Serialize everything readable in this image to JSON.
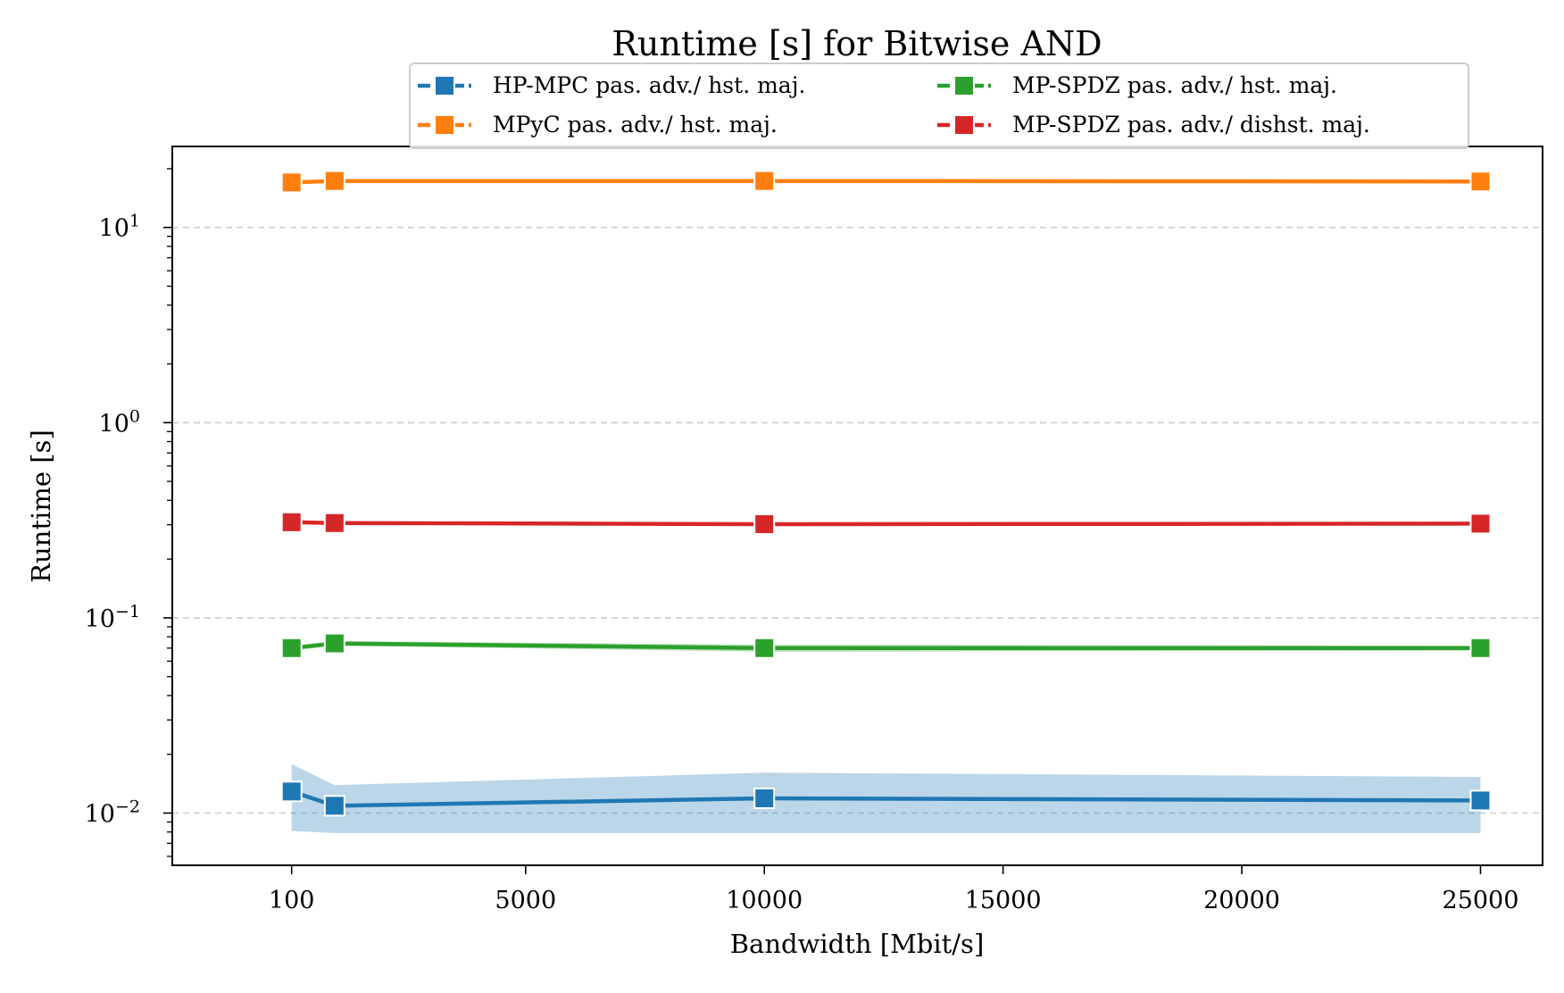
{
  "chart_data": {
    "type": "line",
    "title": "Runtime [s] for Bitwise AND",
    "xlabel": "Bandwidth [Mbit/s]",
    "ylabel": "Runtime [s]",
    "yscale": "log",
    "xlim": [
      -2400,
      26300
    ],
    "ylim": [
      0.0054,
      26
    ],
    "xticks": [
      100,
      5000,
      10000,
      15000,
      20000,
      25000
    ],
    "yticks": [
      {
        "value": 0.01,
        "base": "10",
        "exp": "−2"
      },
      {
        "value": 0.1,
        "base": "10",
        "exp": "−1"
      },
      {
        "value": 1,
        "base": "10",
        "exp": "0"
      },
      {
        "value": 10,
        "base": "10",
        "exp": "1"
      }
    ],
    "grid": "y, dashed",
    "legend_position": "top-center",
    "x": [
      100,
      1000,
      10000,
      25000
    ],
    "series": [
      {
        "name": "HP-MPC pas. adv./ hst. maj.",
        "color": "#1f77b4",
        "values": [
          0.0129,
          0.0109,
          0.0119,
          0.0116
        ],
        "band_low": [
          0.0081,
          0.0079,
          0.0079,
          0.0079
        ],
        "band_high": [
          0.0178,
          0.0139,
          0.0161,
          0.0153
        ]
      },
      {
        "name": "MPyC pas. adv./ hst. maj.",
        "color": "#ff7f0e",
        "values": [
          17.0,
          17.3,
          17.3,
          17.2
        ],
        "band_low": [
          16.8,
          17.1,
          17.1,
          17.0
        ],
        "band_high": [
          17.2,
          17.5,
          17.5,
          17.4
        ]
      },
      {
        "name": "MP-SPDZ pas. adv./ hst. maj.",
        "color": "#2ca02c",
        "values": [
          0.07,
          0.074,
          0.07,
          0.07
        ],
        "band_low": [
          0.068,
          0.072,
          0.067,
          0.068
        ],
        "band_high": [
          0.072,
          0.076,
          0.073,
          0.072
        ]
      },
      {
        "name": "MP-SPDZ pas. adv./ dishst. maj.",
        "color": "#d62728",
        "values": [
          0.309,
          0.306,
          0.302,
          0.304
        ],
        "band_low": [
          0.305,
          0.302,
          0.298,
          0.3
        ],
        "band_high": [
          0.313,
          0.31,
          0.306,
          0.308
        ]
      }
    ]
  }
}
